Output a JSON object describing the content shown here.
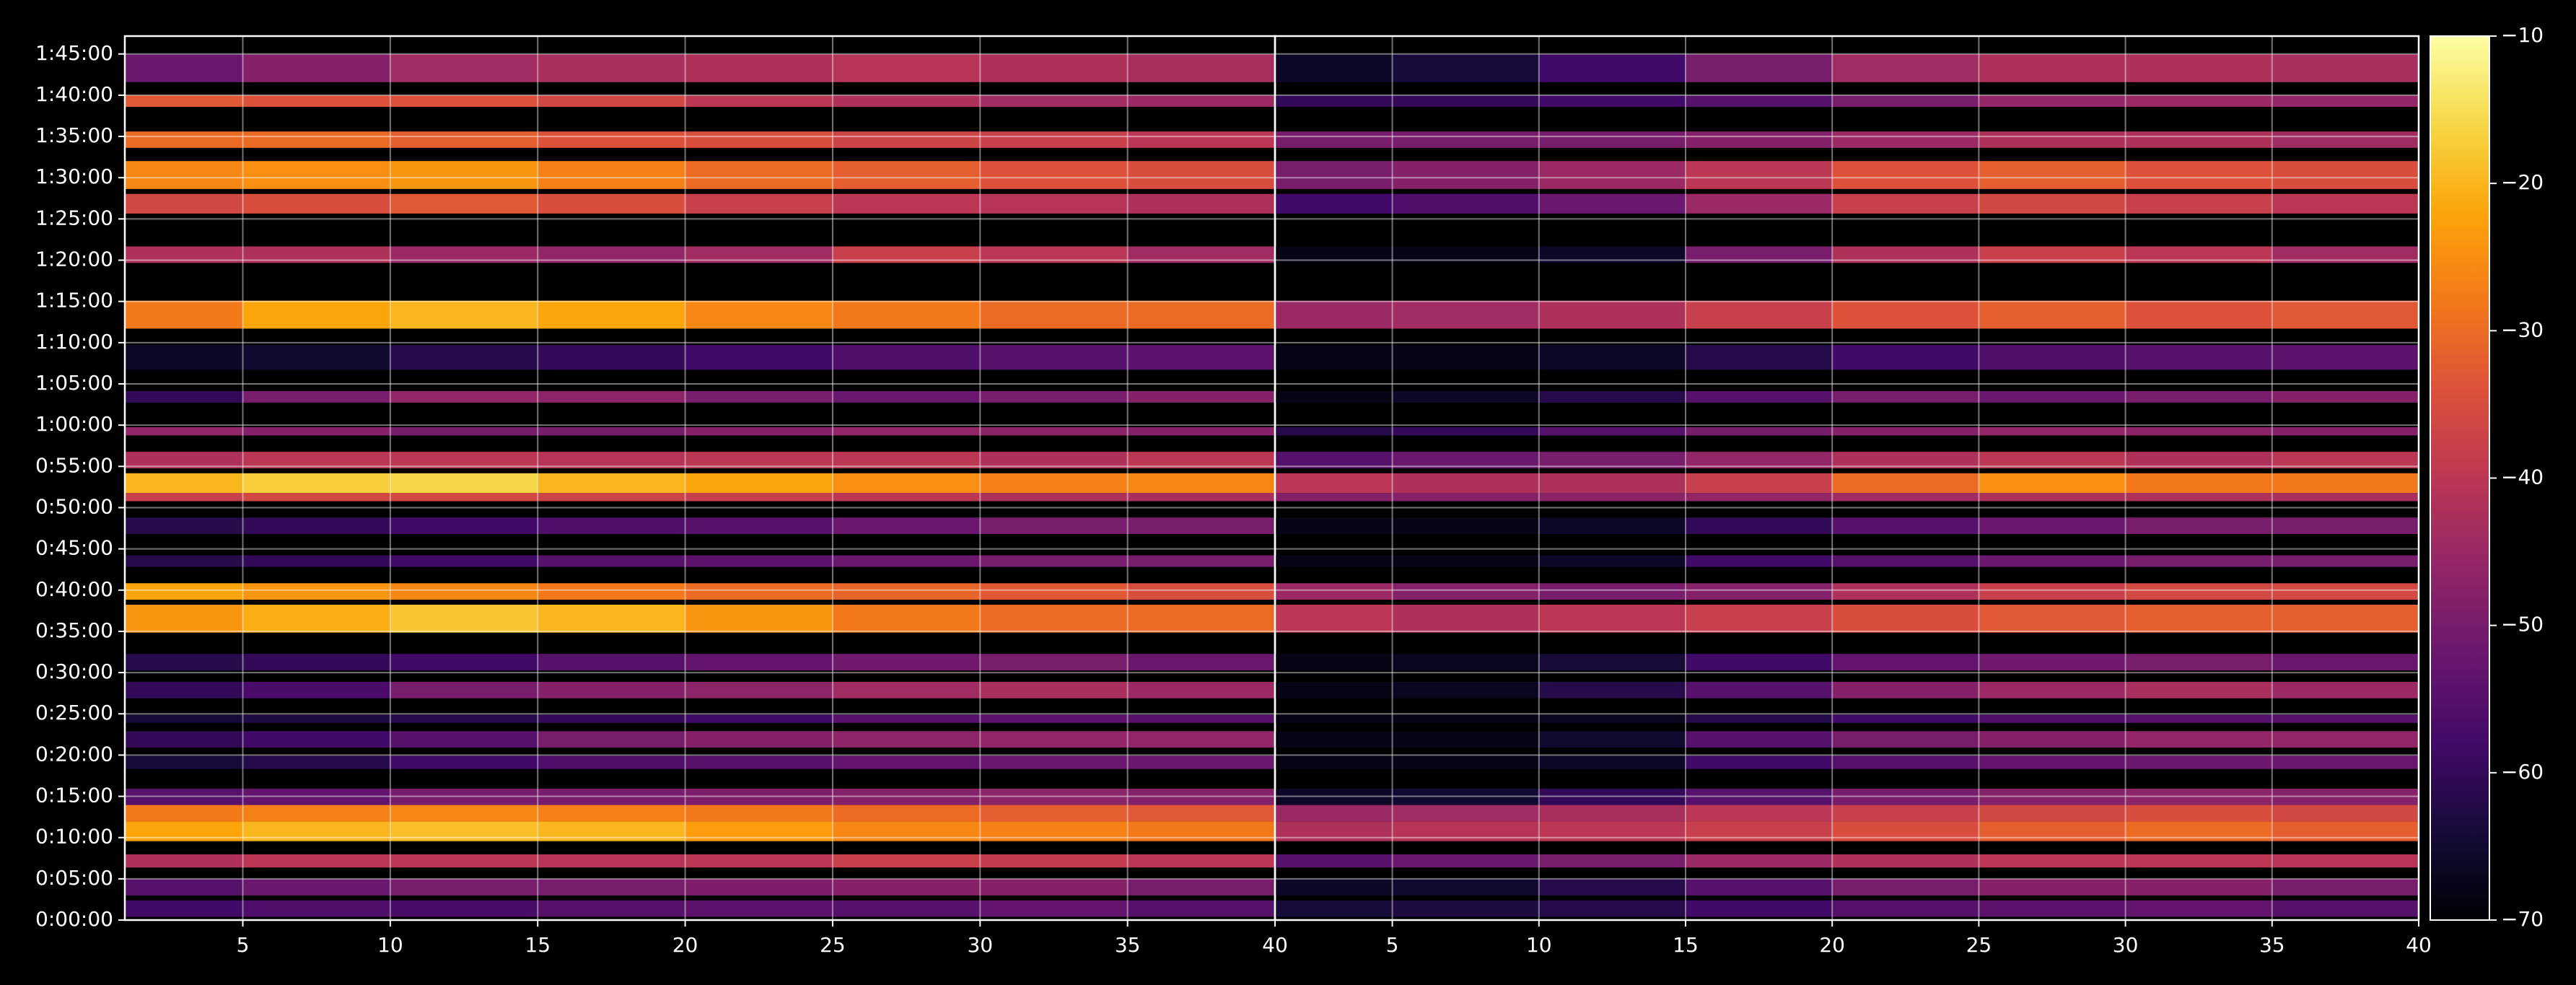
{
  "chart_data": {
    "type": "heatmap",
    "colormap": "inferno",
    "grid": true,
    "ylim": [
      0,
      6430
    ],
    "yticks": [
      {
        "value": 0,
        "label": "0:00:00"
      },
      {
        "value": 300,
        "label": "0:05:00"
      },
      {
        "value": 600,
        "label": "0:10:00"
      },
      {
        "value": 900,
        "label": "0:15:00"
      },
      {
        "value": 1200,
        "label": "0:20:00"
      },
      {
        "value": 1500,
        "label": "0:25:00"
      },
      {
        "value": 1800,
        "label": "0:30:00"
      },
      {
        "value": 2100,
        "label": "0:35:00"
      },
      {
        "value": 2400,
        "label": "0:40:00"
      },
      {
        "value": 2700,
        "label": "0:45:00"
      },
      {
        "value": 3000,
        "label": "0:50:00"
      },
      {
        "value": 3300,
        "label": "0:55:00"
      },
      {
        "value": 3600,
        "label": "1:00:00"
      },
      {
        "value": 3900,
        "label": "1:05:00"
      },
      {
        "value": 4200,
        "label": "1:10:00"
      },
      {
        "value": 4500,
        "label": "1:15:00"
      },
      {
        "value": 4800,
        "label": "1:20:00"
      },
      {
        "value": 5100,
        "label": "1:25:00"
      },
      {
        "value": 5400,
        "label": "1:30:00"
      },
      {
        "value": 5700,
        "label": "1:35:00"
      },
      {
        "value": 6000,
        "label": "1:40:00"
      },
      {
        "value": 6300,
        "label": "1:45:00"
      }
    ],
    "x_bins": [
      1,
      5,
      10,
      15,
      20,
      25,
      30,
      35,
      40
    ],
    "y_bands": [
      [
        24,
        143
      ],
      [
        179,
        299
      ],
      [
        382,
        478
      ],
      [
        574,
        717
      ],
      [
        717,
        837
      ],
      [
        837,
        956
      ],
      [
        1099,
        1195
      ],
      [
        1255,
        1374
      ],
      [
        1434,
        1494
      ],
      [
        1613,
        1733
      ],
      [
        1816,
        1936
      ],
      [
        2091,
        2294
      ],
      [
        2330,
        2450
      ],
      [
        2569,
        2653
      ],
      [
        2808,
        2928
      ],
      [
        3047,
        3107
      ],
      [
        3107,
        3250
      ],
      [
        3286,
        3406
      ],
      [
        3525,
        3585
      ],
      [
        3764,
        3848
      ],
      [
        4003,
        4183
      ],
      [
        4302,
        4505
      ],
      [
        4780,
        4900
      ],
      [
        5139,
        5282
      ],
      [
        5318,
        5521
      ],
      [
        5617,
        5736
      ],
      [
        5915,
        5999
      ],
      [
        6095,
        6298
      ]
    ],
    "colorbar": {
      "lim": [
        -70,
        -10
      ],
      "ticks": [
        {
          "value": -70,
          "label": "−70"
        },
        {
          "value": -60,
          "label": "−60"
        },
        {
          "value": -50,
          "label": "−50"
        },
        {
          "value": -40,
          "label": "−40"
        },
        {
          "value": -30,
          "label": "−30"
        },
        {
          "value": -20,
          "label": "−20"
        },
        {
          "value": -10,
          "label": "−10"
        }
      ]
    },
    "panels": [
      {
        "xlim": [
          1,
          40
        ],
        "xticks": [
          5,
          10,
          15,
          20,
          25,
          30,
          35,
          40
        ],
        "values": [
          [
            -58,
            -56,
            -57,
            -55,
            -54,
            -55,
            -53,
            -55
          ],
          [
            -55,
            -52,
            -50,
            -50,
            -49,
            -48,
            -48,
            -50
          ],
          [
            -42,
            -40,
            -40,
            -41,
            -40,
            -38,
            -39,
            -40
          ],
          [
            -22,
            -20,
            -19,
            -20,
            -23,
            -26,
            -27,
            -28
          ],
          [
            -28,
            -27,
            -26,
            -27,
            -28,
            -30,
            -32,
            -33
          ],
          [
            -55,
            -53,
            -50,
            -50,
            -49,
            -48,
            -47,
            -48
          ],
          [
            -64,
            -62,
            -58,
            -56,
            -55,
            -53,
            -52,
            -52
          ],
          [
            -60,
            -58,
            -55,
            -50,
            -48,
            -47,
            -46,
            -46
          ],
          [
            -64,
            -63,
            -62,
            -60,
            -58,
            -55,
            -54,
            -55
          ],
          [
            -60,
            -57,
            -50,
            -48,
            -47,
            -44,
            -43,
            -45
          ],
          [
            -62,
            -60,
            -58,
            -55,
            -53,
            -51,
            -50,
            -52
          ],
          [
            -24,
            -21,
            -18,
            -20,
            -24,
            -28,
            -30,
            -30
          ],
          [
            -22,
            -24,
            -26,
            -28,
            -30,
            -31,
            -33,
            -35
          ],
          [
            -62,
            -60,
            -58,
            -55,
            -54,
            -52,
            -50,
            -50
          ],
          [
            -62,
            -60,
            -58,
            -56,
            -55,
            -52,
            -50,
            -50
          ],
          [
            -38,
            -36,
            -36,
            -37,
            -38,
            -40,
            -42,
            -43
          ],
          [
            -20,
            -17,
            -16,
            -20,
            -22,
            -25,
            -27,
            -26
          ],
          [
            -42,
            -40,
            -40,
            -41,
            -40,
            -40,
            -42,
            -40
          ],
          [
            -46,
            -48,
            -50,
            -50,
            -48,
            -46,
            -47,
            -48
          ],
          [
            -60,
            -50,
            -46,
            -47,
            -50,
            -52,
            -50,
            -48
          ],
          [
            -66,
            -65,
            -62,
            -60,
            -58,
            -56,
            -55,
            -54
          ],
          [
            -28,
            -22,
            -20,
            -22,
            -26,
            -28,
            -30,
            -30
          ],
          [
            -42,
            -42,
            -45,
            -46,
            -44,
            -38,
            -40,
            -44
          ],
          [
            -36,
            -35,
            -33,
            -35,
            -38,
            -40,
            -41,
            -42
          ],
          [
            -26,
            -25,
            -24,
            -27,
            -30,
            -32,
            -34,
            -35
          ],
          [
            -30,
            -30,
            -32,
            -34,
            -35,
            -37,
            -38,
            -40
          ],
          [
            -33,
            -34,
            -34,
            -36,
            -40,
            -42,
            -44,
            -45
          ],
          [
            -52,
            -48,
            -44,
            -43,
            -42,
            -41,
            -42,
            -43
          ]
        ]
      },
      {
        "xlim": [
          1,
          40
        ],
        "xticks": [
          5,
          10,
          15,
          20,
          25,
          30,
          35,
          40
        ],
        "values": [
          [
            -64,
            -63,
            -62,
            -58,
            -55,
            -54,
            -53,
            -55
          ],
          [
            -66,
            -65,
            -62,
            -55,
            -50,
            -48,
            -48,
            -50
          ],
          [
            -55,
            -52,
            -50,
            -45,
            -42,
            -40,
            -40,
            -41
          ],
          [
            -42,
            -41,
            -40,
            -38,
            -35,
            -32,
            -30,
            -32
          ],
          [
            -45,
            -44,
            -43,
            -40,
            -38,
            -36,
            -35,
            -36
          ],
          [
            -66,
            -65,
            -60,
            -55,
            -50,
            -48,
            -47,
            -48
          ],
          [
            -68,
            -68,
            -66,
            -58,
            -55,
            -53,
            -52,
            -52
          ],
          [
            -68,
            -68,
            -65,
            -55,
            -50,
            -48,
            -46,
            -46
          ],
          [
            -68,
            -68,
            -67,
            -62,
            -58,
            -56,
            -55,
            -55
          ],
          [
            -68,
            -67,
            -62,
            -55,
            -48,
            -45,
            -43,
            -45
          ],
          [
            -68,
            -67,
            -64,
            -58,
            -53,
            -51,
            -50,
            -52
          ],
          [
            -40,
            -42,
            -40,
            -38,
            -35,
            -33,
            -32,
            -32
          ],
          [
            -45,
            -48,
            -50,
            -48,
            -42,
            -38,
            -36,
            -36
          ],
          [
            -68,
            -68,
            -66,
            -58,
            -55,
            -52,
            -50,
            -50
          ],
          [
            -68,
            -68,
            -66,
            -60,
            -55,
            -52,
            -50,
            -50
          ],
          [
            -48,
            -48,
            -47,
            -46,
            -44,
            -42,
            -42,
            -43
          ],
          [
            -40,
            -42,
            -42,
            -38,
            -30,
            -25,
            -28,
            -28
          ],
          [
            -55,
            -52,
            -50,
            -46,
            -42,
            -40,
            -42,
            -40
          ],
          [
            -62,
            -60,
            -55,
            -50,
            -48,
            -46,
            -47,
            -48
          ],
          [
            -68,
            -66,
            -62,
            -55,
            -50,
            -52,
            -50,
            -48
          ],
          [
            -68,
            -68,
            -66,
            -62,
            -58,
            -56,
            -55,
            -54
          ],
          [
            -45,
            -44,
            -42,
            -38,
            -34,
            -32,
            -34,
            -33
          ],
          [
            -68,
            -68,
            -66,
            -50,
            -42,
            -38,
            -40,
            -44
          ],
          [
            -58,
            -56,
            -52,
            -45,
            -38,
            -36,
            -38,
            -40
          ],
          [
            -50,
            -48,
            -45,
            -40,
            -34,
            -32,
            -34,
            -35
          ],
          [
            -50,
            -50,
            -50,
            -48,
            -45,
            -42,
            -42,
            -44
          ],
          [
            -60,
            -60,
            -58,
            -55,
            -50,
            -46,
            -45,
            -46
          ],
          [
            -66,
            -64,
            -58,
            -50,
            -44,
            -42,
            -42,
            -43
          ]
        ]
      }
    ]
  }
}
